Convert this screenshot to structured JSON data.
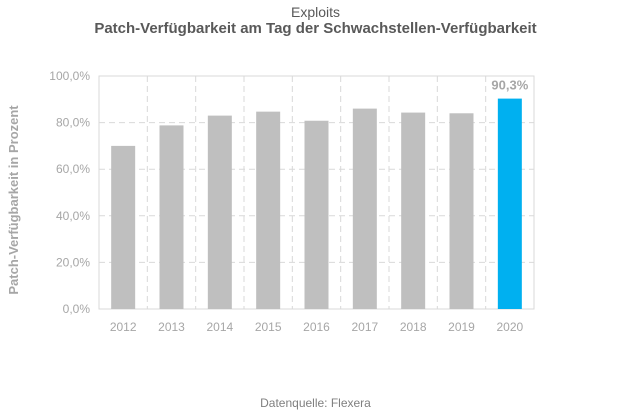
{
  "header": {
    "title": "Exploits",
    "subtitle": "Patch-Verfügbarkeit am Tag der Schwachstellen-Verfügbarkeit"
  },
  "footer": {
    "source": "Datenquelle:  Flexera"
  },
  "chart_data": {
    "type": "bar",
    "title": "Exploits",
    "subtitle": "Patch-Verfügbarkeit am Tag der Schwachstellen-Verfügbarkeit",
    "xlabel": "",
    "ylabel": "Patch-Verfügbarkeit  in Prozent",
    "categories": [
      "2012",
      "2013",
      "2014",
      "2015",
      "2016",
      "2017",
      "2018",
      "2019",
      "2020"
    ],
    "values": [
      70.0,
      78.8,
      83.0,
      84.7,
      80.8,
      86.0,
      84.3,
      84.0,
      90.3
    ],
    "ylim": [
      0,
      100
    ],
    "yticks": [
      0,
      20,
      40,
      60,
      80,
      100
    ],
    "ytick_labels": [
      "0,0%",
      "20,0%",
      "40,0%",
      "60,0%",
      "80,0%",
      "100,0%"
    ],
    "data_labels": [
      {
        "category": "2020",
        "text": "90,3%"
      }
    ],
    "colors": {
      "default_bar": "#bfbfbf",
      "highlight_bar": "#00b0f0",
      "grid": "#d9d9d9",
      "axis_text": "#a6a6a6",
      "data_label": "#a6a6a6"
    },
    "highlight_category": "2020",
    "grid": true,
    "legend": "none"
  }
}
